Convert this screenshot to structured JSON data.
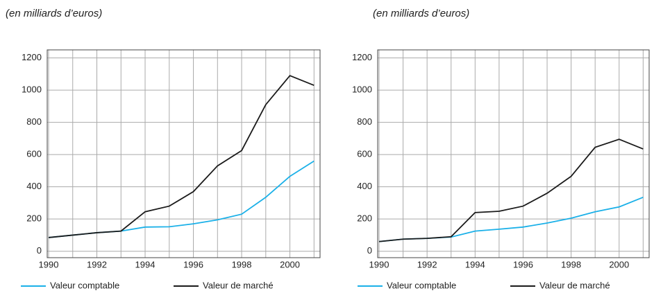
{
  "chart_data": [
    {
      "type": "line",
      "subtitle": "(en milliards d’euros)",
      "x": [
        1990,
        1991,
        1992,
        1993,
        1994,
        1995,
        1996,
        1997,
        1998,
        1999,
        2000,
        2001
      ],
      "series": [
        {
          "name": "Valeur comptable",
          "color": "#1ab0e8",
          "values": [
            85,
            100,
            115,
            125,
            150,
            152,
            170,
            195,
            230,
            335,
            465,
            560
          ]
        },
        {
          "name": "Valeur de marché",
          "color": "#1a1a1a",
          "values": [
            85,
            100,
            115,
            125,
            245,
            280,
            370,
            530,
            625,
            910,
            1090,
            1030
          ]
        }
      ],
      "xlim": [
        1990,
        2001.25
      ],
      "xticks": [
        1990,
        1992,
        1994,
        1996,
        1998,
        2000
      ],
      "ylim": [
        -40,
        1250
      ],
      "yticks": [
        0,
        200,
        400,
        600,
        800,
        1000,
        1200
      ],
      "grid": true
    },
    {
      "type": "line",
      "subtitle": "(en milliards d’euros)",
      "x": [
        1990,
        1991,
        1992,
        1993,
        1994,
        1995,
        1996,
        1997,
        1998,
        1999,
        2000,
        2001
      ],
      "series": [
        {
          "name": "Valeur comptable",
          "color": "#1ab0e8",
          "values": [
            60,
            75,
            80,
            88,
            125,
            137,
            150,
            175,
            205,
            245,
            275,
            335
          ]
        },
        {
          "name": "Valeur de marché",
          "color": "#1a1a1a",
          "values": [
            60,
            75,
            80,
            90,
            240,
            248,
            280,
            360,
            465,
            645,
            695,
            635
          ]
        }
      ],
      "xlim": [
        1990,
        2001.25
      ],
      "xticks": [
        1990,
        1992,
        1994,
        1996,
        1998,
        2000
      ],
      "ylim": [
        -40,
        1250
      ],
      "yticks": [
        0,
        200,
        400,
        600,
        800,
        1000,
        1200
      ],
      "grid": true
    }
  ]
}
